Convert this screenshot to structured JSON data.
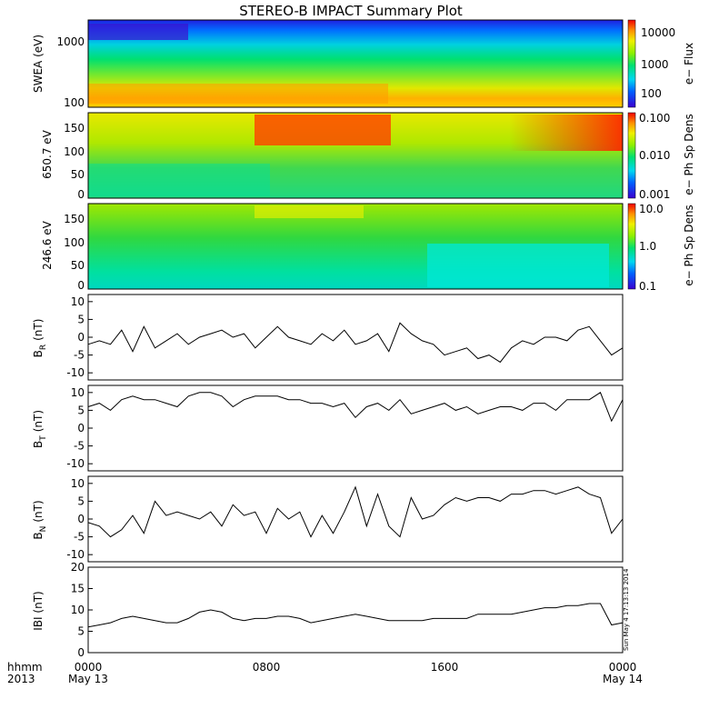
{
  "title": "STEREO-B IMPACT Summary Plot",
  "footer": {
    "left_top": "hhmm",
    "left_bottom": "2013",
    "x_ticks": [
      "0000",
      "0800",
      "1600",
      "0000"
    ],
    "x_dates": [
      "May 13",
      "May 14"
    ],
    "timestamp": "Sun May  4 17:13:13 2014"
  },
  "chart_data": [
    {
      "type": "heatmap",
      "id": "swea",
      "ylabel": "SWEA (eV)",
      "yscale": "log",
      "yticks": [
        "1000",
        "100"
      ],
      "colorbar": {
        "label": "e− Flux",
        "ticks": [
          "10000",
          "1000",
          "100"
        ],
        "scale": "log",
        "range": [
          50,
          20000
        ]
      }
    },
    {
      "type": "heatmap",
      "id": "pad650",
      "ylabel": "650.7 eV",
      "yticks": [
        "150",
        "100",
        "50",
        "0"
      ],
      "ylim": [
        0,
        180
      ],
      "colorbar": {
        "label": "e− Ph Sp Dens",
        "ticks": [
          "0.100",
          "0.010",
          "0.001"
        ],
        "scale": "log",
        "range": [
          0.001,
          0.1
        ]
      }
    },
    {
      "type": "heatmap",
      "id": "pad246",
      "ylabel": "246.6 eV",
      "yticks": [
        "150",
        "100",
        "50",
        "0"
      ],
      "ylim": [
        0,
        180
      ],
      "colorbar": {
        "label": "e− Ph Sp Dens",
        "ticks": [
          "10.0",
          "1.0",
          "0.1"
        ],
        "scale": "log",
        "range": [
          0.1,
          10
        ]
      }
    },
    {
      "type": "line",
      "id": "br",
      "ylabel": "B",
      "ylabel_sub": "R",
      "ylabel_unit": "(nT)",
      "ylim": [
        -12,
        12
      ],
      "yticks": [
        10,
        5,
        0,
        -5,
        -10
      ],
      "x": [
        0,
        0.5,
        1,
        1.5,
        2,
        2.5,
        3,
        3.5,
        4,
        4.5,
        5,
        5.5,
        6,
        6.5,
        7,
        7.5,
        8,
        8.5,
        9,
        9.5,
        10,
        10.5,
        11,
        11.5,
        12,
        12.5,
        13,
        13.5,
        14,
        14.5,
        15,
        15.5,
        16,
        16.5,
        17,
        17.5,
        18,
        18.5,
        19,
        19.5,
        20,
        20.5,
        21,
        21.5,
        22,
        22.5,
        23,
        23.5,
        24
      ],
      "values": [
        -2,
        -1,
        -2,
        2,
        -4,
        3,
        -3,
        -1,
        1,
        -2,
        0,
        1,
        2,
        0,
        1,
        -3,
        0,
        3,
        0,
        -1,
        -2,
        1,
        -1,
        2,
        -2,
        -1,
        1,
        -4,
        4,
        1,
        -1,
        -2,
        -5,
        -4,
        -3,
        -6,
        -5,
        -7,
        -3,
        -1,
        -2,
        0,
        0,
        -1,
        2,
        3,
        -1,
        -5,
        -3
      ],
      "series": [
        {
          "color": "#000000"
        }
      ]
    },
    {
      "type": "line",
      "id": "bt",
      "ylabel": "B",
      "ylabel_sub": "T",
      "ylabel_unit": "(nT)",
      "ylim": [
        -12,
        12
      ],
      "yticks": [
        10,
        5,
        0,
        -5,
        -10
      ],
      "x": [
        0,
        0.5,
        1,
        1.5,
        2,
        2.5,
        3,
        3.5,
        4,
        4.5,
        5,
        5.5,
        6,
        6.5,
        7,
        7.5,
        8,
        8.5,
        9,
        9.5,
        10,
        10.5,
        11,
        11.5,
        12,
        12.5,
        13,
        13.5,
        14,
        14.5,
        15,
        15.5,
        16,
        16.5,
        17,
        17.5,
        18,
        18.5,
        19,
        19.5,
        20,
        20.5,
        21,
        21.5,
        22,
        22.5,
        23,
        23.5,
        24
      ],
      "values": [
        6,
        7,
        5,
        8,
        9,
        8,
        8,
        7,
        6,
        9,
        10,
        10,
        9,
        6,
        8,
        9,
        9,
        9,
        8,
        8,
        7,
        7,
        6,
        7,
        3,
        6,
        7,
        5,
        8,
        4,
        5,
        6,
        7,
        5,
        6,
        4,
        5,
        6,
        6,
        5,
        7,
        7,
        5,
        8,
        8,
        8,
        10,
        2,
        8
      ],
      "series": [
        {
          "color": "#000000"
        }
      ]
    },
    {
      "type": "line",
      "id": "bn",
      "ylabel": "B",
      "ylabel_sub": "N",
      "ylabel_unit": "(nT)",
      "ylim": [
        -12,
        12
      ],
      "yticks": [
        10,
        5,
        0,
        -5,
        -10
      ],
      "x": [
        0,
        0.5,
        1,
        1.5,
        2,
        2.5,
        3,
        3.5,
        4,
        4.5,
        5,
        5.5,
        6,
        6.5,
        7,
        7.5,
        8,
        8.5,
        9,
        9.5,
        10,
        10.5,
        11,
        11.5,
        12,
        12.5,
        13,
        13.5,
        14,
        14.5,
        15,
        15.5,
        16,
        16.5,
        17,
        17.5,
        18,
        18.5,
        19,
        19.5,
        20,
        20.5,
        21,
        21.5,
        22,
        22.5,
        23,
        23.5,
        24
      ],
      "values": [
        -1,
        -2,
        -5,
        -3,
        1,
        -4,
        5,
        1,
        2,
        1,
        0,
        2,
        -2,
        4,
        1,
        2,
        -4,
        3,
        0,
        2,
        -5,
        1,
        -4,
        2,
        9,
        -2,
        7,
        -2,
        -5,
        6,
        0,
        1,
        4,
        6,
        5,
        6,
        6,
        5,
        7,
        7,
        8,
        8,
        7,
        8,
        9,
        7,
        6,
        -4,
        0
      ],
      "series": [
        {
          "color": "#000000"
        }
      ]
    },
    {
      "type": "line",
      "id": "bmag",
      "ylabel": "IBI (nT)",
      "ylim": [
        0,
        20
      ],
      "yticks": [
        20,
        15,
        10,
        5,
        0
      ],
      "x": [
        0,
        0.5,
        1,
        1.5,
        2,
        2.5,
        3,
        3.5,
        4,
        4.5,
        5,
        5.5,
        6,
        6.5,
        7,
        7.5,
        8,
        8.5,
        9,
        9.5,
        10,
        10.5,
        11,
        11.5,
        12,
        12.5,
        13,
        13.5,
        14,
        14.5,
        15,
        15.5,
        16,
        16.5,
        17,
        17.5,
        18,
        18.5,
        19,
        19.5,
        20,
        20.5,
        21,
        21.5,
        22,
        22.5,
        23,
        23.5,
        24
      ],
      "values": [
        6,
        6.5,
        7,
        8,
        8.5,
        8,
        7.5,
        7,
        7,
        8,
        9.5,
        10,
        9.5,
        8,
        7.5,
        8,
        8,
        8.5,
        8.5,
        8,
        7,
        7.5,
        8,
        8.5,
        9,
        8.5,
        8,
        7.5,
        7.5,
        7.5,
        7.5,
        8,
        8,
        8,
        8,
        9,
        9,
        9,
        9,
        9.5,
        10,
        10.5,
        10.5,
        11,
        11,
        11.5,
        11.5,
        6.5,
        7
      ],
      "series": [
        {
          "color": "#000000"
        }
      ]
    }
  ]
}
